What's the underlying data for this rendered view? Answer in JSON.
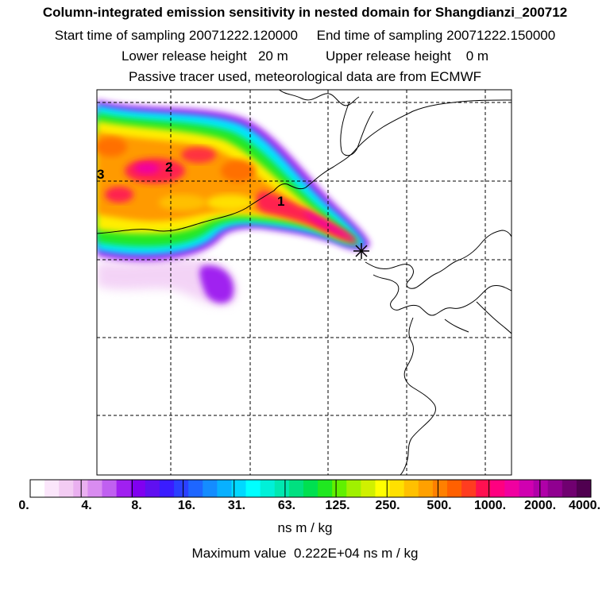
{
  "header": {
    "title": "Column-integrated emission sensitivity in nested domain for Shangdianzi_200712",
    "sampling_start_label": "Start time of sampling",
    "sampling_start_value": "20071222.120000",
    "sampling_end_label": "End time of sampling",
    "sampling_end_value": "20071222.150000",
    "lower_release_label": "Lower release height",
    "lower_release_value": "20 m",
    "upper_release_label": "Upper release height",
    "upper_release_value": "0 m",
    "tracer_note": "Passive tracer used, meteorological data are from ECMWF"
  },
  "map": {
    "release_site_icon": "asterisk-icon",
    "trajectory_markers": [
      "1",
      "2",
      "3"
    ]
  },
  "colorbar": {
    "tick_labels": [
      "0.",
      "4.",
      "8.",
      "16.",
      "31.",
      "63.",
      "125.",
      "250.",
      "500.",
      "1000.",
      "2000.",
      "4000."
    ],
    "colors": [
      "#ffffff",
      "#fbe6fb",
      "#f3ccf3",
      "#eab0f0",
      "#d98cf0",
      "#c060f0",
      "#a020f0",
      "#8000f0",
      "#6010f0",
      "#3a1cff",
      "#2a40ff",
      "#1e66ff",
      "#148cff",
      "#08b0ff",
      "#00d8ff",
      "#00ffff",
      "#00f0d8",
      "#00e8b0",
      "#00e080",
      "#00e050",
      "#20e820",
      "#60f000",
      "#a0f000",
      "#d0f000",
      "#ffff00",
      "#ffe000",
      "#ffc000",
      "#ffa000",
      "#ff8000",
      "#ff6000",
      "#ff3c20",
      "#ff1050",
      "#ff0080",
      "#f000a0",
      "#d000b0",
      "#b000a8",
      "#900090",
      "#700070",
      "#500050"
    ],
    "units": "ns m / kg",
    "max_label": "Maximum value",
    "max_value": "0.222E+04 ns m / kg"
  }
}
